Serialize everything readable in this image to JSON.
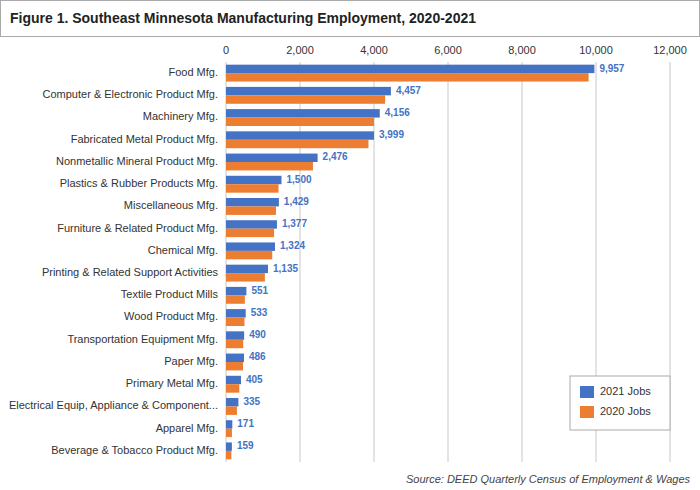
{
  "chart_data": {
    "type": "bar",
    "orientation": "horizontal",
    "title": "Figure 1. Southeast Minnesota Manufacturing Employment, 2020-2021",
    "source": "Source: DEED Quarterly Census of Employment & Wages",
    "categories": [
      "Food Mfg.",
      "Computer & Electronic Product Mfg.",
      "Machinery Mfg.",
      "Fabricated Metal Product Mfg.",
      "Nonmetallic Mineral Product Mfg.",
      "Plastics & Rubber Products Mfg.",
      "Miscellaneous Mfg.",
      "Furniture & Related Product Mfg.",
      "Chemical Mfg.",
      "Printing & Related Support Activities",
      "Textile Product Mills",
      "Wood Product Mfg.",
      "Transportation Equipment Mfg.",
      "Paper Mfg.",
      "Primary Metal Mfg.",
      "Electrical Equip, Appliance & Component...",
      "Apparel Mfg.",
      "Beverage & Tobacco Product Mfg."
    ],
    "series": [
      {
        "name": "2021 Jobs",
        "color": "#4472C4",
        "data_labels": true,
        "values": [
          9957,
          4457,
          4156,
          3999,
          2476,
          1500,
          1429,
          1377,
          1324,
          1135,
          551,
          533,
          490,
          486,
          405,
          335,
          171,
          159
        ],
        "value_labels": [
          "9,957",
          "4,457",
          "4,156",
          "3,999",
          "2,476",
          "1,500",
          "1,429",
          "1,377",
          "1,324",
          "1,135",
          "551",
          "533",
          "490",
          "486",
          "405",
          "335",
          "171",
          "159"
        ]
      },
      {
        "name": "2020 Jobs",
        "color": "#ED7D31",
        "values": [
          9800,
          4300,
          4000,
          3850,
          2350,
          1420,
          1350,
          1300,
          1250,
          1050,
          510,
          500,
          465,
          460,
          360,
          295,
          160,
          145
        ]
      }
    ],
    "xlim": [
      0,
      12000
    ],
    "xticks": [
      0,
      {
        "value": 2000,
        "label": "2,000"
      },
      {
        "value": 4000,
        "label": "4,000"
      },
      {
        "value": 6000,
        "label": "6,000"
      },
      {
        "value": 8000,
        "label": "8,000"
      },
      {
        "value": 10000,
        "label": "10,000"
      },
      {
        "value": 12000,
        "label": "12,000"
      }
    ],
    "grid": true,
    "legend": "lower right"
  }
}
